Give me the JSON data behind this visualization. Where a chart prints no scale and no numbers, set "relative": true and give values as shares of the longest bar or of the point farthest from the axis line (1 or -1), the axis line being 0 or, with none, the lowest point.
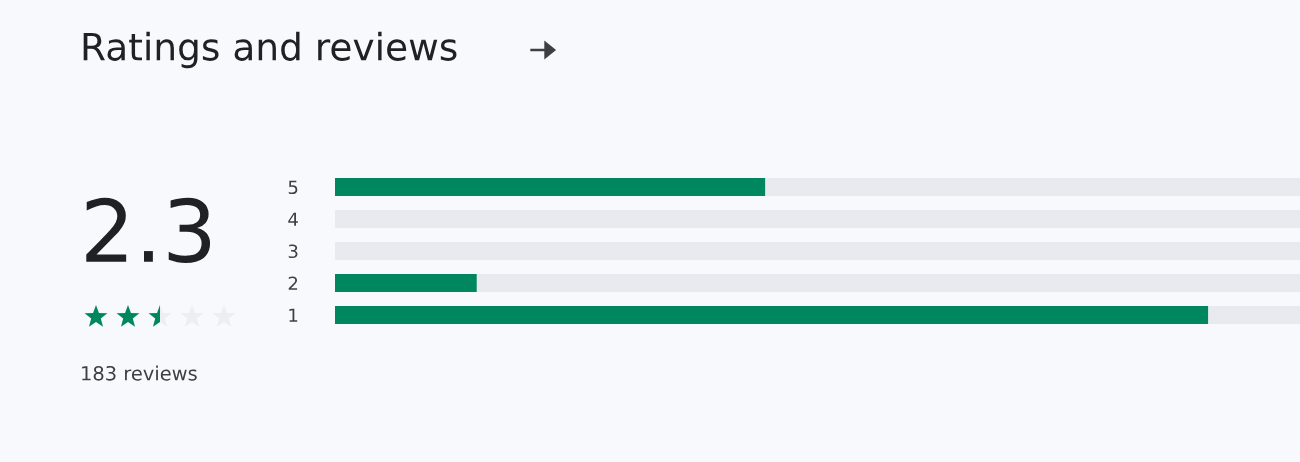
{
  "chart_data": {
    "type": "bar",
    "title": "Ratings and reviews",
    "orientation": "horizontal",
    "stacked": true,
    "relative": true,
    "categories": [
      "5",
      "4",
      "3",
      "2",
      "1"
    ],
    "series": [
      {
        "color": "#01875f",
        "values": [
          0.446,
          0,
          0,
          0.147,
          0.905
        ]
      },
      {
        "color": "#e8eaef",
        "values": [
          0.554,
          1,
          1,
          0.853,
          0.095
        ]
      }
    ],
    "annotations": [
      "2.3",
      "183 reviews"
    ]
  }
}
